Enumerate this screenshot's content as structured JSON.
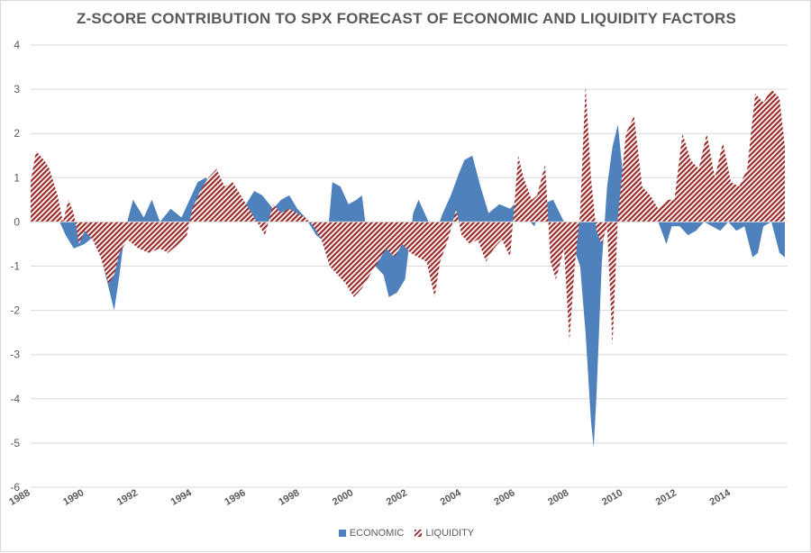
{
  "chart_data": {
    "type": "area",
    "title": "Z-SCORE CONTRIBUTION TO SPX FORECAST OF ECONOMIC AND LIQUIDITY FACTORS",
    "xlabel": "",
    "ylabel": "",
    "ylim": [
      -6,
      4
    ],
    "xlim": [
      1988,
      2016.1
    ],
    "yticks": [
      "4",
      "3",
      "2",
      "1",
      "0",
      "-1",
      "-2",
      "-3",
      "-4",
      "-5",
      "-6"
    ],
    "xticks": [
      "1988",
      "1990",
      "1992",
      "1994",
      "1996",
      "1998",
      "2000",
      "2002",
      "2004",
      "2006",
      "2008",
      "2010",
      "2012",
      "2014"
    ],
    "legend": {
      "position": "bottom",
      "entries": [
        "ECONOMIC",
        "LIQUIDITY"
      ]
    },
    "colors": {
      "economic": "#4f81bd",
      "liquidity": "#9b2b2b",
      "grid": "#d9d9d9",
      "text": "#595959"
    },
    "series": [
      {
        "name": "ECONOMIC",
        "style": "solid",
        "x": [
          1988.0,
          1988.5,
          1989.0,
          1989.3,
          1989.6,
          1990.0,
          1990.4,
          1990.7,
          1990.9,
          1991.1,
          1991.3,
          1991.5,
          1991.8,
          1992.2,
          1992.5,
          1992.8,
          1993.2,
          1993.6,
          1993.9,
          1994.2,
          1994.5,
          1994.8,
          1995.2,
          1995.6,
          1996.0,
          1996.3,
          1996.6,
          1997.0,
          1997.3,
          1997.6,
          1997.9,
          1998.2,
          1998.6,
          1999.0,
          1999.2,
          1999.5,
          1999.8,
          2000.1,
          2000.3,
          2000.5,
          2000.8,
          2001.1,
          2001.3,
          2001.6,
          2001.9,
          2002.2,
          2002.4,
          2002.7,
          2003.0,
          2003.3,
          2003.6,
          2003.9,
          2004.1,
          2004.4,
          2004.7,
          2005.0,
          2005.4,
          2005.8,
          2006.1,
          2006.4,
          2006.7,
          2007.0,
          2007.4,
          2007.8,
          2008.1,
          2008.4,
          2008.6,
          2008.8,
          2008.9,
          2009.0,
          2009.2,
          2009.4,
          2009.6,
          2009.8,
          2010.0,
          2010.2,
          2010.4,
          2010.7,
          2011.0,
          2011.3,
          2011.6,
          2011.8,
          2012.1,
          2012.4,
          2012.7,
          2013.0,
          2013.3,
          2013.6,
          2013.9,
          2014.2,
          2014.5,
          2014.8,
          2015.0,
          2015.2,
          2015.5,
          2015.8,
          2016.0
        ],
        "values": [
          0.3,
          0.4,
          0.1,
          -0.3,
          -0.6,
          -0.5,
          -0.3,
          -1.0,
          -1.5,
          -2.0,
          -1.2,
          -0.2,
          0.5,
          0.1,
          0.5,
          0.0,
          0.3,
          0.1,
          0.5,
          0.9,
          1.0,
          0.8,
          0.6,
          0.5,
          0.4,
          0.7,
          0.6,
          0.3,
          0.5,
          0.6,
          0.3,
          0.1,
          -0.3,
          -0.5,
          0.9,
          0.8,
          0.4,
          0.5,
          0.6,
          -0.4,
          -1.0,
          -1.2,
          -1.7,
          -1.6,
          -1.3,
          0.2,
          0.5,
          0.1,
          -0.3,
          0.2,
          0.6,
          1.1,
          1.4,
          1.5,
          0.8,
          0.2,
          0.4,
          0.3,
          0.5,
          0.1,
          -0.1,
          0.4,
          0.5,
          0.0,
          -0.5,
          -1.0,
          -2.5,
          -4.5,
          -5.1,
          -4.0,
          -1.0,
          0.8,
          1.7,
          2.2,
          1.0,
          0.3,
          0.7,
          0.6,
          0.4,
          0.0,
          -0.5,
          -0.1,
          -0.1,
          -0.3,
          -0.2,
          0.0,
          -0.1,
          -0.2,
          0.0,
          -0.2,
          -0.1,
          -0.8,
          -0.7,
          -0.1,
          0.0,
          -0.7,
          -0.8
        ]
      },
      {
        "name": "LIQUIDITY",
        "style": "hatched",
        "x": [
          1988.0,
          1988.2,
          1988.5,
          1988.7,
          1989.0,
          1989.2,
          1989.4,
          1989.6,
          1989.8,
          1990.0,
          1990.3,
          1990.6,
          1990.9,
          1991.1,
          1991.3,
          1991.6,
          1992.0,
          1992.4,
          1992.8,
          1993.1,
          1993.5,
          1993.8,
          1994.0,
          1994.3,
          1994.6,
          1994.9,
          1995.2,
          1995.5,
          1995.8,
          1996.1,
          1996.4,
          1996.7,
          1997.0,
          1997.3,
          1997.6,
          1997.9,
          1998.2,
          1998.5,
          1998.8,
          1999.1,
          1999.4,
          1999.7,
          2000.0,
          2000.3,
          2000.6,
          2000.9,
          2001.2,
          2001.5,
          2001.8,
          2002.1,
          2002.4,
          2002.7,
          2003.0,
          2003.2,
          2003.5,
          2003.8,
          2004.0,
          2004.3,
          2004.6,
          2004.9,
          2005.2,
          2005.5,
          2005.8,
          2006.1,
          2006.3,
          2006.6,
          2006.8,
          2007.1,
          2007.3,
          2007.5,
          2007.8,
          2008.0,
          2008.2,
          2008.4,
          2008.6,
          2008.8,
          2009.0,
          2009.2,
          2009.4,
          2009.6,
          2009.8,
          2010.1,
          2010.4,
          2010.7,
          2011.0,
          2011.3,
          2011.6,
          2011.9,
          2012.2,
          2012.5,
          2012.8,
          2013.1,
          2013.4,
          2013.7,
          2014.0,
          2014.3,
          2014.6,
          2014.9,
          2015.2,
          2015.5,
          2015.8,
          2016.0
        ],
        "values": [
          0.9,
          1.6,
          1.4,
          1.2,
          0.6,
          0.0,
          0.5,
          0.2,
          -0.5,
          -0.2,
          -0.4,
          -0.8,
          -1.4,
          -1.2,
          -0.7,
          -0.4,
          -0.6,
          -0.7,
          -0.6,
          -0.7,
          -0.5,
          -0.3,
          0.3,
          0.7,
          1.0,
          1.2,
          0.8,
          0.9,
          0.6,
          0.3,
          0.0,
          -0.3,
          0.4,
          0.2,
          0.3,
          0.2,
          0.1,
          -0.1,
          -0.4,
          -1.0,
          -1.2,
          -1.4,
          -1.7,
          -1.5,
          -1.2,
          -0.9,
          -0.6,
          -0.8,
          -0.5,
          -0.7,
          -0.8,
          -0.9,
          -1.7,
          -0.9,
          -0.4,
          0.3,
          -0.3,
          -0.5,
          -0.4,
          -0.9,
          -0.6,
          -0.4,
          -0.8,
          1.5,
          1.0,
          0.5,
          0.6,
          1.3,
          -0.9,
          -1.3,
          -0.6,
          -2.7,
          -1.0,
          0.2,
          3.1,
          1.0,
          -0.2,
          -0.5,
          -0.1,
          -2.8,
          0.1,
          2.0,
          2.4,
          0.8,
          0.6,
          0.3,
          0.5,
          0.5,
          2.0,
          1.4,
          1.2,
          2.0,
          1.0,
          1.8,
          0.9,
          0.8,
          1.2,
          2.9,
          2.7,
          3.0,
          2.8,
          1.7
        ]
      }
    ]
  }
}
